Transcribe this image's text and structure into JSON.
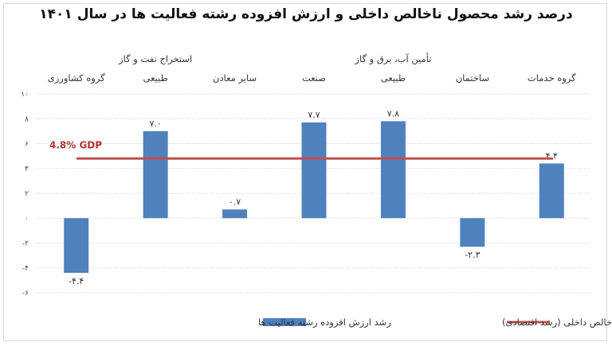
{
  "title": "درصد رشد محصول ناخالص داخلی و ارزش افزوده رشته فعالیت ها در سال ۱۴۰۱",
  "colors": {
    "bar": "#4f81bd",
    "line": "#c0504d",
    "gdp_text": "#b03535"
  },
  "chart_data": {
    "type": "bar",
    "categories": [
      [
        "گروه کشاورزی"
      ],
      [
        "استخراج نفت و گاز",
        "طبیعی"
      ],
      [
        "سایر معادن"
      ],
      [
        "صنعت"
      ],
      [
        "تأمین آب، برق و گاز",
        "طبیعی"
      ],
      [
        "ساختمان"
      ],
      [
        "گروه خدمات"
      ]
    ],
    "series": [
      {
        "name": "رشد ارزش افزوده رشته فعالیت ها",
        "values": [
          -4.4,
          7.0,
          0.7,
          7.7,
          7.8,
          -2.3,
          4.4
        ],
        "labels": [
          "-۴.۴",
          "۷.۰",
          "۰.۷",
          "۷.۷",
          "۷.۸",
          "-۲.۳",
          "۴.۴"
        ]
      }
    ],
    "reference_line": {
      "name": "رشد محصول ناخالص داخلی (رشد اقتصادی)",
      "value": 4.8,
      "label": "4.8%  GDP"
    },
    "yticks": [
      {
        "value": 10,
        "label": "۱۰"
      },
      {
        "value": 8,
        "label": "۸"
      },
      {
        "value": 6,
        "label": "۶"
      },
      {
        "value": 4,
        "label": "۴"
      },
      {
        "value": 2,
        "label": "۲"
      },
      {
        "value": 0,
        "label": "۰"
      },
      {
        "value": -2,
        "label": "-۲"
      },
      {
        "value": -4,
        "label": "-۴"
      },
      {
        "value": -6,
        "label": "-۶"
      }
    ],
    "ylim": [
      -6,
      10
    ],
    "grid": true,
    "legend_position": "bottom"
  }
}
